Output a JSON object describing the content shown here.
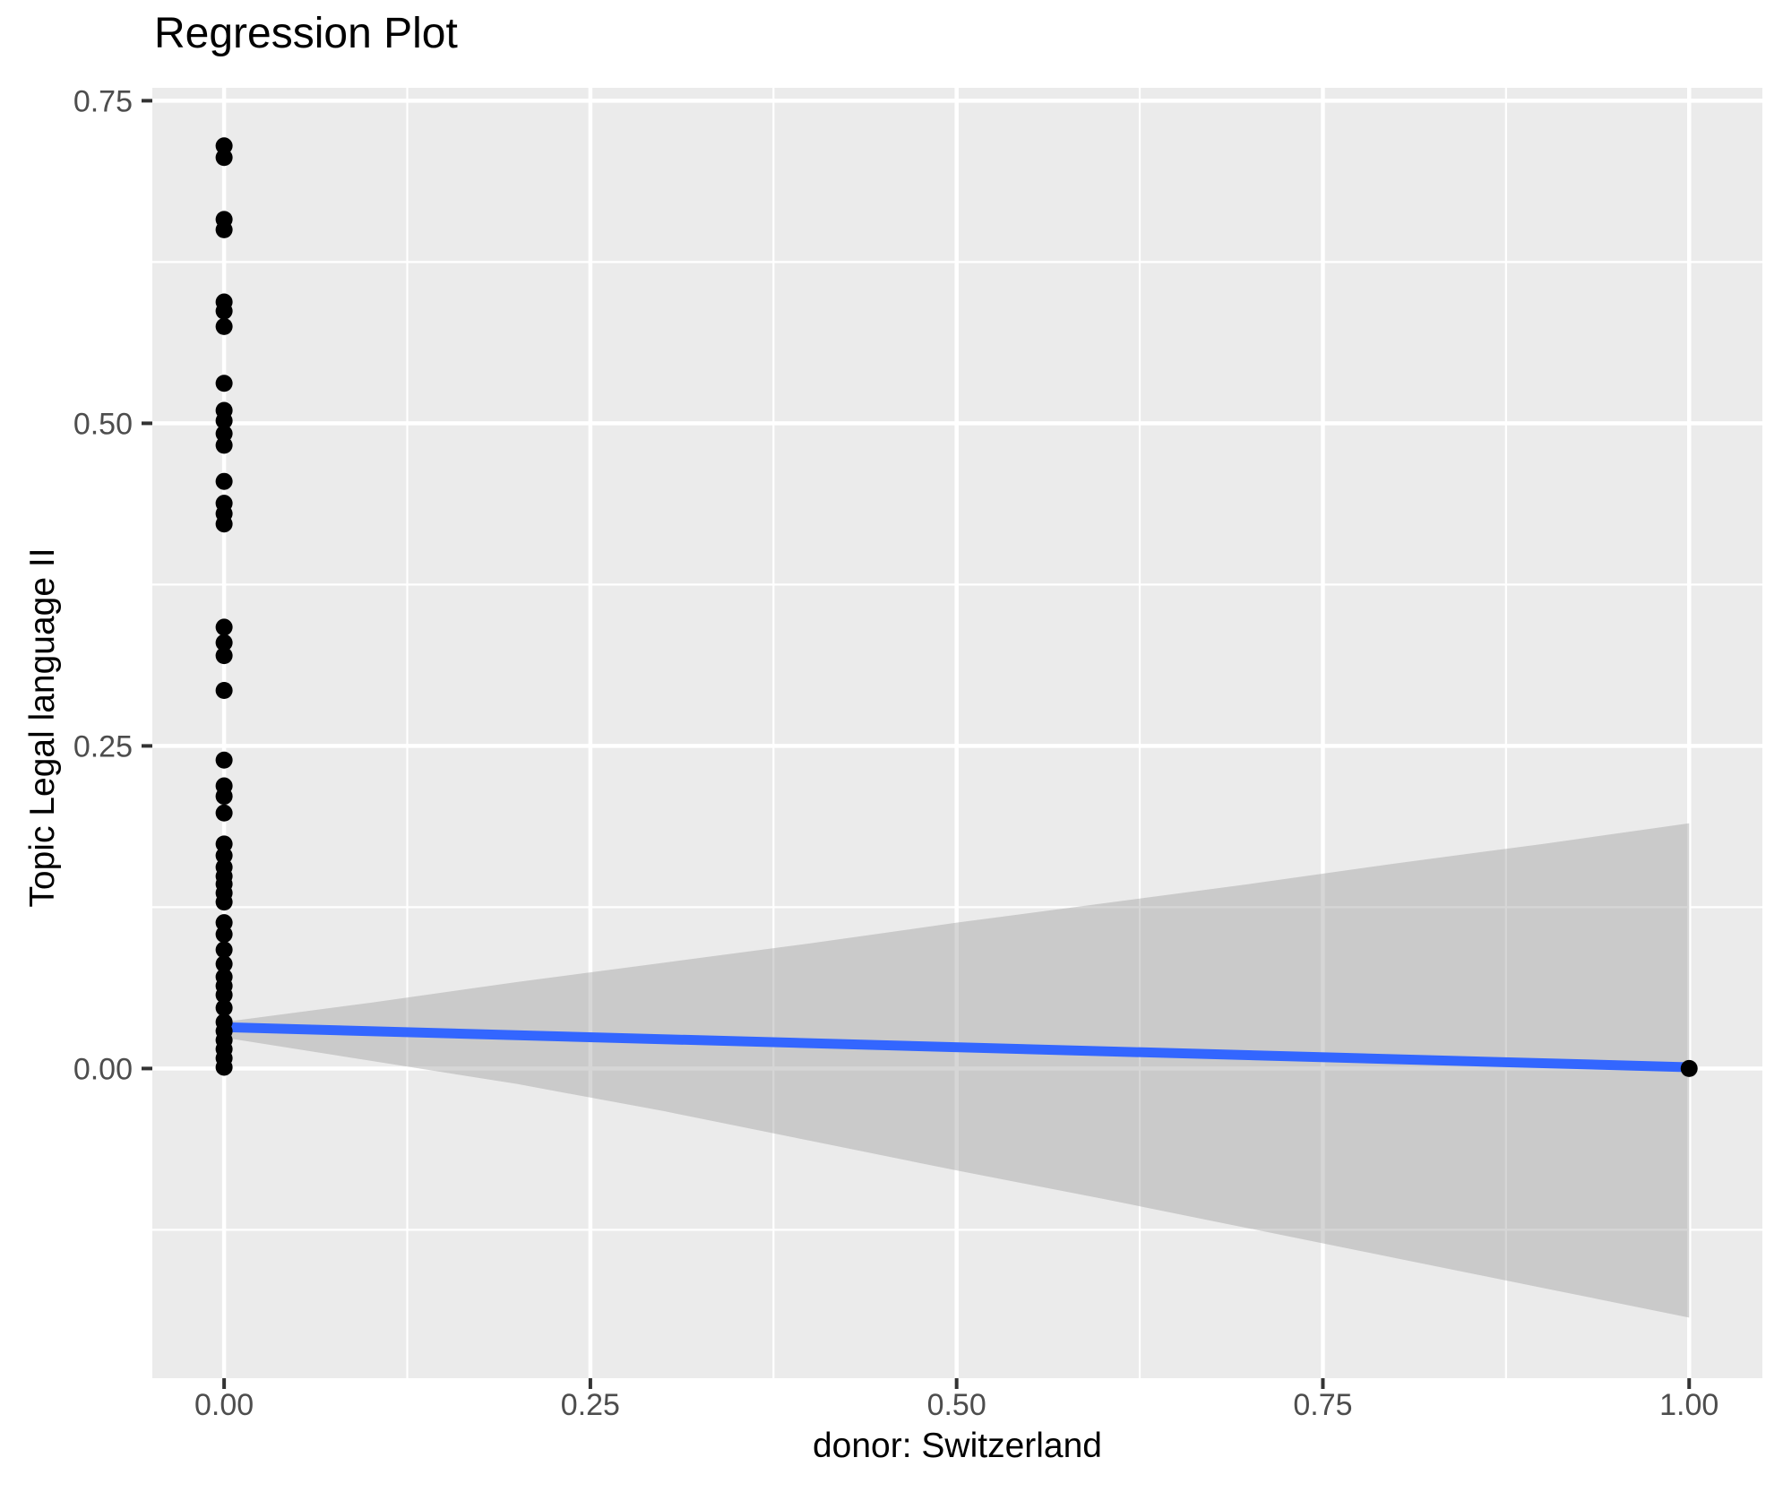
{
  "chart_data": {
    "type": "scatter",
    "title": "Regression Plot",
    "xlabel": "donor: Switzerland",
    "ylabel": "Topic Legal language II",
    "xlim": [
      -0.049,
      1.05
    ],
    "ylim": [
      -0.24,
      0.76
    ],
    "grid": true,
    "legend": false,
    "x_ticks": {
      "values": [
        0,
        0.25,
        0.5,
        0.75,
        1.0
      ],
      "labels": [
        "0.00",
        "0.25",
        "0.50",
        "0.75",
        "1.00"
      ]
    },
    "y_ticks": {
      "values": [
        0,
        0.25,
        0.5,
        0.75
      ],
      "labels": [
        "0.00",
        "0.25",
        "0.50",
        "0.75"
      ]
    },
    "x_minor": [
      0.125,
      0.375,
      0.625,
      0.875
    ],
    "y_minor": [
      -0.125,
      0.125,
      0.375,
      0.625
    ],
    "points": [
      [
        0,
        0.715
      ],
      [
        0,
        0.706
      ],
      [
        0,
        0.658
      ],
      [
        0,
        0.65
      ],
      [
        0,
        0.594
      ],
      [
        0,
        0.587
      ],
      [
        0,
        0.575
      ],
      [
        0,
        0.531
      ],
      [
        0,
        0.51
      ],
      [
        0,
        0.502
      ],
      [
        0,
        0.492
      ],
      [
        0,
        0.483
      ],
      [
        0,
        0.455
      ],
      [
        0,
        0.438
      ],
      [
        0,
        0.43
      ],
      [
        0,
        0.422
      ],
      [
        0,
        0.342
      ],
      [
        0,
        0.33
      ],
      [
        0,
        0.32
      ],
      [
        0,
        0.293
      ],
      [
        0,
        0.239
      ],
      [
        0,
        0.219
      ],
      [
        0,
        0.211
      ],
      [
        0,
        0.198
      ],
      [
        0,
        0.174
      ],
      [
        0,
        0.165
      ],
      [
        0,
        0.156
      ],
      [
        0,
        0.149
      ],
      [
        0,
        0.143
      ],
      [
        0,
        0.136
      ],
      [
        0,
        0.129
      ],
      [
        0,
        0.113
      ],
      [
        0,
        0.104
      ],
      [
        0,
        0.092
      ],
      [
        0,
        0.081
      ],
      [
        0,
        0.071
      ],
      [
        0,
        0.064
      ],
      [
        0,
        0.057
      ],
      [
        0,
        0.047
      ],
      [
        0,
        0.036
      ],
      [
        0,
        0.029
      ],
      [
        0,
        0.022
      ],
      [
        0,
        0.015
      ],
      [
        0,
        0.008
      ],
      [
        0,
        0.001
      ],
      [
        1,
        0.0
      ]
    ],
    "regression_line": {
      "x": [
        0,
        1
      ],
      "y": [
        0.032,
        0.001
      ],
      "color": "#3366FF"
    },
    "confidence_band": {
      "x": [
        0.0,
        0.1,
        0.2,
        0.3,
        0.4,
        0.5,
        0.6,
        0.7,
        0.8,
        0.9,
        1.0
      ],
      "upper": [
        0.036,
        0.051,
        0.067,
        0.082,
        0.097,
        0.113,
        0.128,
        0.143,
        0.159,
        0.174,
        0.19
      ],
      "lower": [
        0.024,
        0.006,
        -0.012,
        -0.033,
        -0.056,
        -0.079,
        -0.101,
        -0.124,
        -0.147,
        -0.17,
        -0.193
      ],
      "color": "#999999",
      "opacity": 0.4
    },
    "colors": {
      "panel_background": "#EBEBEB",
      "gridline": "#FFFFFF",
      "point": "#000000",
      "tick_label": "#4D4D4D",
      "tick_mark": "#333333",
      "title_text": "#000000"
    }
  }
}
